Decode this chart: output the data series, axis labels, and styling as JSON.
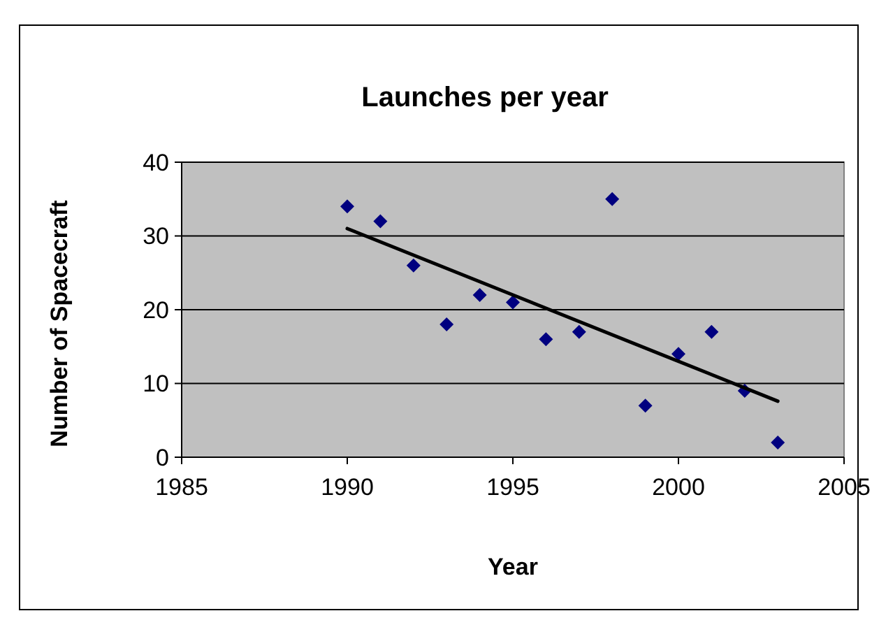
{
  "chart_data": {
    "type": "scatter",
    "title": "Launches per year",
    "xlabel": "Year",
    "ylabel": "Number of Spacecraft",
    "xlim": [
      1985,
      2005
    ],
    "xticks": [
      1985,
      1990,
      1995,
      2000,
      2005
    ],
    "ylim": [
      0,
      40
    ],
    "yticks": [
      0,
      10,
      20,
      30,
      40
    ],
    "grid": "y",
    "marker": "diamond",
    "series": [
      {
        "color": "#000080",
        "x": [
          1990,
          1991,
          1992,
          1993,
          1994,
          1995,
          1996,
          1997,
          1998,
          1999,
          2000,
          2001,
          2002,
          2003
        ],
        "values": [
          34,
          32,
          26,
          18,
          22,
          21,
          16,
          17,
          35,
          7,
          14,
          17,
          9,
          2
        ]
      },
      {
        "type": "line",
        "color": "#000000",
        "x": [
          1990,
          2003
        ],
        "values": [
          31,
          7.6
        ],
        "marker": "none",
        "line_style": "solid"
      }
    ]
  }
}
